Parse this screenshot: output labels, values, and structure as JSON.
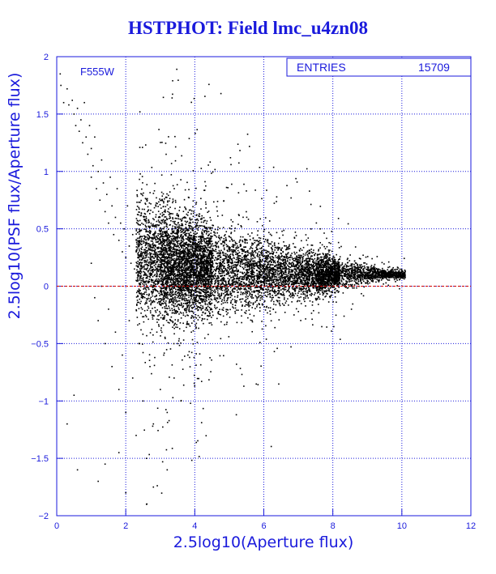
{
  "page": {
    "title": "HSTPHOT: Field lmc_u4zn08"
  },
  "stats_box": {
    "label": "ENTRIES",
    "value": "15709"
  },
  "filter_label": "F555W",
  "chart_data": {
    "type": "scatter",
    "title": "HSTPHOT: Field lmc_u4zn08",
    "xlabel": "2.5log10(Aperture flux)",
    "ylabel": "2.5log10(PSF flux/Aperture flux)",
    "xlim": [
      0,
      12
    ],
    "ylim": [
      -2,
      2
    ],
    "x_ticks": [
      "0",
      "2",
      "4",
      "6",
      "8",
      "10",
      "12"
    ],
    "y_ticks": [
      "-2",
      "-1.5",
      "-1",
      "-0.5",
      "0",
      "0.5",
      "1",
      "1.5",
      "2"
    ],
    "grid": true,
    "reference_line_y": 0,
    "entries": 15709,
    "colors": {
      "axes": "#1a1adc",
      "grid": "#1a1adc",
      "points": "#000000",
      "reference_line": "#cc0000"
    },
    "points": [
      [
        0.1,
        1.85
      ],
      [
        0.12,
        1.75
      ],
      [
        0.2,
        1.6
      ],
      [
        0.3,
        1.72
      ],
      [
        0.35,
        1.58
      ],
      [
        0.45,
        1.62
      ],
      [
        0.5,
        1.5
      ],
      [
        0.55,
        1.4
      ],
      [
        0.6,
        1.55
      ],
      [
        0.65,
        1.35
      ],
      [
        0.7,
        1.45
      ],
      [
        0.75,
        1.25
      ],
      [
        0.8,
        1.6
      ],
      [
        0.85,
        1.3
      ],
      [
        0.9,
        1.15
      ],
      [
        0.95,
        1.4
      ],
      [
        1.0,
        1.2
      ],
      [
        1.0,
        0.95
      ],
      [
        1.05,
        1.05
      ],
      [
        1.1,
        1.3
      ],
      [
        1.15,
        0.85
      ],
      [
        1.2,
        1.0
      ],
      [
        1.25,
        0.75
      ],
      [
        1.3,
        1.1
      ],
      [
        1.35,
        0.9
      ],
      [
        1.4,
        0.65
      ],
      [
        1.45,
        0.8
      ],
      [
        1.5,
        0.55
      ],
      [
        1.55,
        0.95
      ],
      [
        1.6,
        0.7
      ],
      [
        1.65,
        0.45
      ],
      [
        1.7,
        0.6
      ],
      [
        1.75,
        0.85
      ],
      [
        1.8,
        0.4
      ],
      [
        1.85,
        0.55
      ],
      [
        1.9,
        0.3
      ],
      [
        1.95,
        0.5
      ],
      [
        2.0,
        0.25
      ],
      [
        2.05,
        0.7
      ],
      [
        2.1,
        0.35
      ],
      [
        2.15,
        0.2
      ],
      [
        2.2,
        0.45
      ],
      [
        2.25,
        0.15
      ],
      [
        2.3,
        0.3
      ],
      [
        2.35,
        0.1
      ],
      [
        2.4,
        0.4
      ],
      [
        2.45,
        0.05
      ],
      [
        2.5,
        0.25
      ],
      [
        1.0,
        0.2
      ],
      [
        1.1,
        -0.1
      ],
      [
        1.2,
        -0.3
      ],
      [
        1.3,
        0.0
      ],
      [
        1.4,
        -0.5
      ],
      [
        1.5,
        -0.2
      ],
      [
        1.6,
        -0.7
      ],
      [
        1.7,
        -0.4
      ],
      [
        1.8,
        -0.9
      ],
      [
        1.9,
        -0.6
      ],
      [
        2.0,
        -1.1
      ],
      [
        2.1,
        -0.3
      ],
      [
        2.2,
        -0.8
      ],
      [
        2.3,
        -1.3
      ],
      [
        2.4,
        -0.5
      ],
      [
        2.5,
        -1.0
      ],
      [
        2.6,
        -1.5
      ],
      [
        2.7,
        -0.7
      ],
      [
        2.8,
        -1.2
      ],
      [
        2.9,
        -0.4
      ],
      [
        3.0,
        -0.9
      ],
      [
        3.1,
        -0.6
      ],
      [
        3.2,
        -1.1
      ],
      [
        3.3,
        -0.3
      ],
      [
        3.4,
        -0.8
      ],
      [
        3.5,
        -0.5
      ],
      [
        3.6,
        -1.0
      ],
      [
        3.7,
        -0.2
      ],
      [
        3.8,
        -0.6
      ],
      [
        3.9,
        -0.4
      ],
      [
        1.2,
        -1.7
      ],
      [
        1.4,
        -1.55
      ],
      [
        0.6,
        -1.6
      ],
      [
        1.8,
        -1.45
      ],
      [
        2.0,
        -1.8
      ],
      [
        2.6,
        -1.9
      ],
      [
        0.3,
        -1.2
      ],
      [
        0.5,
        -0.95
      ],
      [
        2.8,
        -1.75
      ],
      [
        3.2,
        -1.6
      ]
    ]
  }
}
